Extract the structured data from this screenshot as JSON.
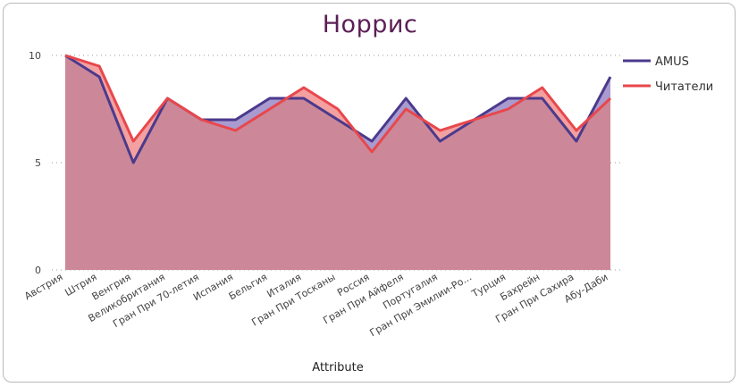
{
  "chart_data": {
    "type": "area",
    "title": "Норрис",
    "xlabel": "Attribute",
    "ylabel": "",
    "ylim": [
      0,
      10
    ],
    "yticks": [
      0,
      5,
      10
    ],
    "grid": true,
    "legend_position": "top-right",
    "categories": [
      "Австрия",
      "Штрия",
      "Венгрия",
      "Великобритания",
      "Гран При 70-летия",
      "Испания",
      "Бельгия",
      "Италия",
      "Гран При Тосканы",
      "Россия",
      "Гран При Айфеля",
      "Португалия",
      "Гран При Эмилии-Ро...",
      "Турция",
      "Бахрейн",
      "Гран При Сахира",
      "Абу-Даби"
    ],
    "series": [
      {
        "name": "AMUS",
        "color": "#4b3a8c",
        "fill": "#a99bd0",
        "values": [
          10,
          9,
          5,
          8,
          7,
          7,
          8,
          8,
          7,
          6,
          8,
          6,
          7,
          8,
          8,
          6,
          9
        ]
      },
      {
        "name": "Читатели",
        "color": "#e8474c",
        "fill": "#f3a0a0",
        "values": [
          10,
          9.5,
          6,
          8,
          7,
          6.5,
          7.5,
          8.5,
          7.5,
          5.5,
          7.5,
          6.5,
          7,
          7.5,
          8.5,
          6.5,
          8
        ]
      }
    ],
    "overlap_fill": "#cc8898"
  }
}
